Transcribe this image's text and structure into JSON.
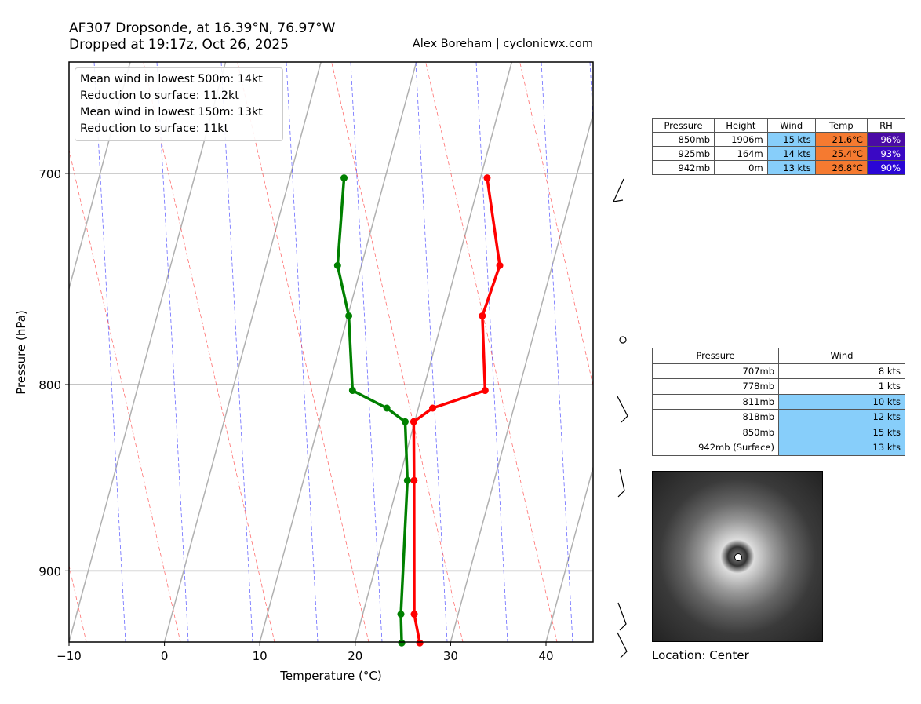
{
  "title_line1": "AF307 Dropsonde, at 16.39°N, 76.97°W",
  "title_line2": "Dropped at 19:17z, Oct 26, 2025",
  "credit": "Alex Boreham | cyclonicwx.com",
  "legend": [
    "Mean wind in lowest 500m: 14kt",
    "Reduction to surface: 11.2kt",
    "Mean wind in lowest 150m:  13kt",
    "Reduction to surface: 11kt"
  ],
  "summary_table": {
    "headers": [
      "Pressure",
      "Height",
      "Wind",
      "Temp",
      "RH"
    ],
    "rows": [
      [
        "850mb",
        "1906m",
        "15 kts",
        "21.6°C",
        "96%"
      ],
      [
        "925mb",
        "164m",
        "14 kts",
        "25.4°C",
        "93%"
      ],
      [
        "942mb",
        "0m",
        "13 kts",
        "26.8°C",
        "90%"
      ]
    ],
    "rh_colors": [
      "#4a0aa6",
      "#3a08c4",
      "#2a06d6"
    ],
    "wind_color": "#87cefa",
    "temp_color": "#f57a30"
  },
  "wind_table": {
    "headers": [
      "Pressure",
      "Wind"
    ],
    "rows": [
      [
        "707mb",
        "8 kts"
      ],
      [
        "778mb",
        "1 kts"
      ],
      [
        "811mb",
        "10 kts"
      ],
      [
        "818mb",
        "12 kts"
      ],
      [
        "850mb",
        "15 kts"
      ],
      [
        "942mb (Surface)",
        "13 kts"
      ]
    ],
    "highlight": [
      false,
      false,
      true,
      true,
      true,
      true
    ]
  },
  "location": "Location: Center",
  "chart_data": {
    "type": "line",
    "subtype": "skew-t",
    "xlabel": "Temperature (°C)",
    "ylabel": "Pressure (hPa)",
    "xlim": [
      -10,
      45
    ],
    "ylim": [
      942,
      652
    ],
    "xticks": [
      -10,
      0,
      10,
      20,
      30,
      40
    ],
    "yticks": [
      700,
      800,
      900
    ],
    "pressure": [
      702,
      742,
      766,
      803,
      812,
      819,
      850,
      925,
      942
    ],
    "series": [
      {
        "name": "Temperature",
        "color": "#ff0000",
        "values": [
          20.7,
          24.5,
          24.1,
          26.5,
          21.5,
          19.9,
          21.6,
          25.4,
          26.8
        ]
      },
      {
        "name": "Dewpoint",
        "color": "#008000",
        "values": [
          5.7,
          7.5,
          10.1,
          12.6,
          16.7,
          19.0,
          20.9,
          24.0,
          24.9
        ]
      }
    ],
    "grid": true
  }
}
